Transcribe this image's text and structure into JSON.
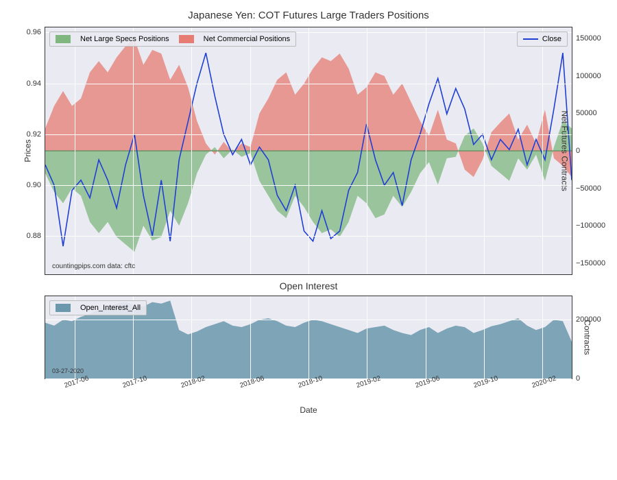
{
  "main_chart": {
    "title": "Japanese Yen: COT Futures Large Traders Positions",
    "type": "area+line_dual_axis",
    "background_color": "#eaeaf2",
    "grid_color": "#fdfdfe",
    "border_color": "#333333",
    "x": {
      "ticks": [
        "2017-06",
        "2017-10",
        "2018-02",
        "2018-06",
        "2018-10",
        "2019-02",
        "2019-06",
        "2019-10",
        "2020-02"
      ],
      "label": "Date",
      "rotation_deg": -18
    },
    "y_left": {
      "label": "Prices",
      "lim": [
        0.865,
        0.962
      ],
      "ticks": [
        0.88,
        0.9,
        0.92,
        0.94,
        0.96
      ],
      "label_fontsize": 12,
      "tick_fontsize": 11
    },
    "y_right": {
      "label": "Net Futures Contracts",
      "lim": [
        -165000,
        165000
      ],
      "ticks": [
        -150000,
        -100000,
        -50000,
        0,
        50000,
        100000,
        150000
      ],
      "tick_labels": [
        "−150000",
        "−100000",
        "−50000",
        "0",
        "50000",
        "100000",
        "150000"
      ],
      "label_fontsize": 12,
      "tick_fontsize": 11
    },
    "series_specs": {
      "name": "Net Large Specs Positions",
      "color": "#7fb77f",
      "opacity": 0.75,
      "axis": "right",
      "baseline": 0,
      "values": [
        -30000,
        -55000,
        -70000,
        -50000,
        -60000,
        -95000,
        -110000,
        -95000,
        -115000,
        -125000,
        -135000,
        -100000,
        -120000,
        -115000,
        -80000,
        -100000,
        -70000,
        -30000,
        -5000,
        5000,
        -10000,
        2000,
        -8000,
        -3000,
        -40000,
        -60000,
        -80000,
        -90000,
        -60000,
        -75000,
        -95000,
        -110000,
        -105000,
        -115000,
        -95000,
        -60000,
        -70000,
        -90000,
        -85000,
        -60000,
        -75000,
        -55000,
        -30000,
        -15000,
        -45000,
        -10000,
        -8000,
        20000,
        30000,
        10000,
        -20000,
        -30000,
        -40000,
        -10000,
        -25000,
        -5000,
        -40000,
        5000,
        40000,
        30000
      ]
    },
    "series_comm": {
      "name": "Net Commercial Positions",
      "color": "#e67c73",
      "opacity": 0.75,
      "axis": "right",
      "baseline": 0,
      "values": [
        30000,
        60000,
        80000,
        60000,
        70000,
        105000,
        120000,
        105000,
        125000,
        140000,
        150000,
        115000,
        135000,
        130000,
        95000,
        115000,
        85000,
        40000,
        10000,
        -5000,
        12000,
        -2000,
        10000,
        5000,
        50000,
        70000,
        95000,
        105000,
        75000,
        90000,
        110000,
        125000,
        120000,
        130000,
        110000,
        75000,
        85000,
        105000,
        100000,
        75000,
        90000,
        65000,
        40000,
        20000,
        55000,
        15000,
        10000,
        -25000,
        -35000,
        -12000,
        25000,
        38000,
        50000,
        15000,
        35000,
        10000,
        55000,
        -10000,
        -20000,
        -35000
      ]
    },
    "series_close": {
      "name": "Close",
      "color": "#1f3fd4",
      "line_width": 1.6,
      "axis": "left",
      "values": [
        0.908,
        0.9,
        0.876,
        0.898,
        0.902,
        0.895,
        0.91,
        0.902,
        0.891,
        0.908,
        0.92,
        0.896,
        0.88,
        0.902,
        0.878,
        0.91,
        0.925,
        0.94,
        0.952,
        0.935,
        0.92,
        0.912,
        0.918,
        0.908,
        0.915,
        0.91,
        0.896,
        0.89,
        0.9,
        0.882,
        0.878,
        0.89,
        0.879,
        0.882,
        0.898,
        0.905,
        0.924,
        0.91,
        0.9,
        0.905,
        0.892,
        0.91,
        0.92,
        0.932,
        0.942,
        0.928,
        0.938,
        0.93,
        0.916,
        0.92,
        0.91,
        0.918,
        0.914,
        0.922,
        0.908,
        0.918,
        0.91,
        0.93,
        0.952,
        0.902
      ]
    },
    "legend_left": {
      "items": [
        {
          "label": "Net Large Specs Positions",
          "color": "#7fb77f"
        },
        {
          "label": "Net Commercial Positions",
          "color": "#e67c73"
        }
      ]
    },
    "legend_right": {
      "items": [
        {
          "label": "Close",
          "color": "#1f3fd4"
        }
      ]
    },
    "attribution": "countingpips.com     data: cftc"
  },
  "sub_chart": {
    "title": "Open Interest",
    "type": "area",
    "background_color": "#eaeaf2",
    "grid_color": "#fdfdfe",
    "border_color": "#333333",
    "y_right": {
      "label": "Contracts",
      "lim": [
        0,
        280000
      ],
      "ticks": [
        0,
        200000
      ],
      "tick_labels": [
        "0",
        "200000"
      ]
    },
    "series_oi": {
      "name": "Open_Interest_All",
      "color": "#6b98ad",
      "opacity": 0.85,
      "baseline": 0,
      "values": [
        190000,
        180000,
        200000,
        195000,
        210000,
        220000,
        235000,
        240000,
        255000,
        260000,
        250000,
        245000,
        260000,
        255000,
        265000,
        165000,
        150000,
        160000,
        175000,
        185000,
        195000,
        180000,
        175000,
        185000,
        200000,
        205000,
        195000,
        180000,
        175000,
        190000,
        200000,
        195000,
        185000,
        175000,
        165000,
        155000,
        170000,
        175000,
        180000,
        165000,
        155000,
        148000,
        165000,
        175000,
        155000,
        170000,
        180000,
        175000,
        155000,
        165000,
        178000,
        185000,
        195000,
        205000,
        180000,
        165000,
        175000,
        200000,
        195000,
        125000
      ]
    },
    "legend": {
      "items": [
        {
          "label": "Open_Interest_All",
          "color": "#6b98ad"
        }
      ]
    },
    "date_note": "03-27-2020"
  }
}
